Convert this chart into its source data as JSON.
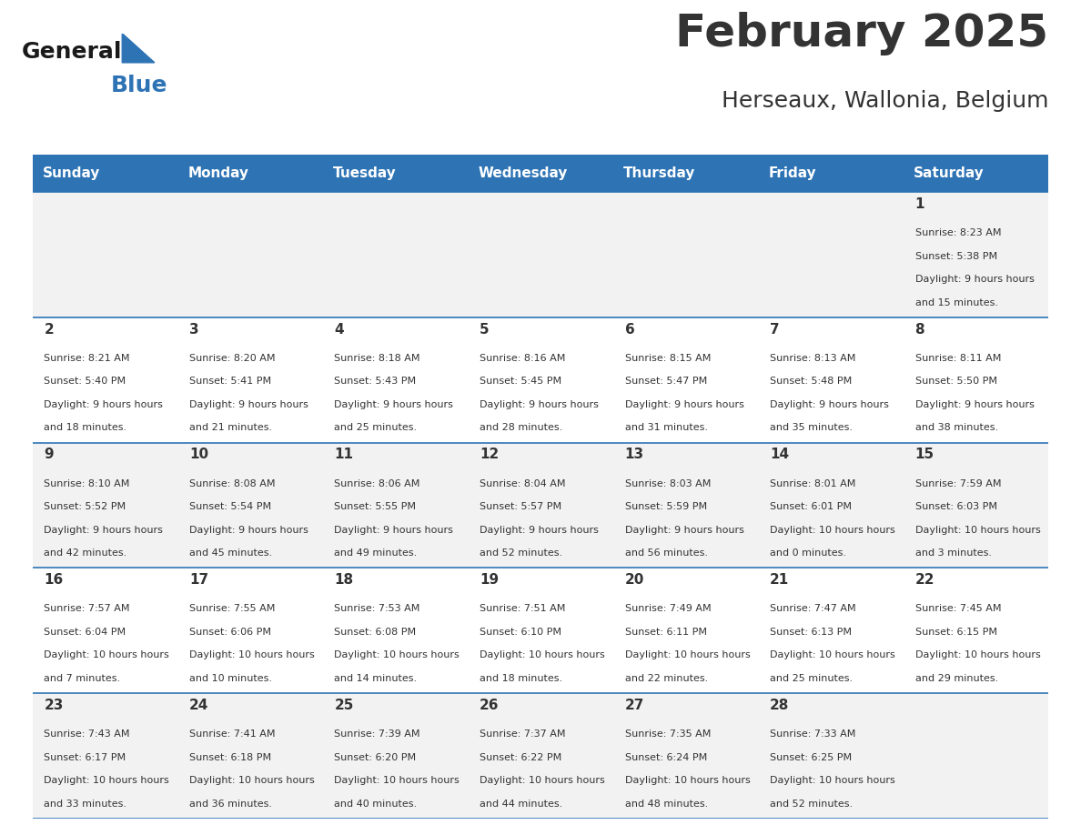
{
  "title": "February 2025",
  "subtitle": "Herseaux, Wallonia, Belgium",
  "header_bg": "#2E74B5",
  "header_text_color": "#FFFFFF",
  "day_names": [
    "Sunday",
    "Monday",
    "Tuesday",
    "Wednesday",
    "Thursday",
    "Friday",
    "Saturday"
  ],
  "odd_row_bg": "#F2F2F2",
  "even_row_bg": "#FFFFFF",
  "cell_text_color": "#333333",
  "date_color": "#333333",
  "title_color": "#333333",
  "subtitle_color": "#333333",
  "line_color": "#2E74B5",
  "calendar_data": [
    [
      null,
      null,
      null,
      null,
      null,
      null,
      {
        "day": 1,
        "sunrise": "8:23 AM",
        "sunset": "5:38 PM",
        "daylight": "9 hours and 15 minutes."
      }
    ],
    [
      {
        "day": 2,
        "sunrise": "8:21 AM",
        "sunset": "5:40 PM",
        "daylight": "9 hours and 18 minutes."
      },
      {
        "day": 3,
        "sunrise": "8:20 AM",
        "sunset": "5:41 PM",
        "daylight": "9 hours and 21 minutes."
      },
      {
        "day": 4,
        "sunrise": "8:18 AM",
        "sunset": "5:43 PM",
        "daylight": "9 hours and 25 minutes."
      },
      {
        "day": 5,
        "sunrise": "8:16 AM",
        "sunset": "5:45 PM",
        "daylight": "9 hours and 28 minutes."
      },
      {
        "day": 6,
        "sunrise": "8:15 AM",
        "sunset": "5:47 PM",
        "daylight": "9 hours and 31 minutes."
      },
      {
        "day": 7,
        "sunrise": "8:13 AM",
        "sunset": "5:48 PM",
        "daylight": "9 hours and 35 minutes."
      },
      {
        "day": 8,
        "sunrise": "8:11 AM",
        "sunset": "5:50 PM",
        "daylight": "9 hours and 38 minutes."
      }
    ],
    [
      {
        "day": 9,
        "sunrise": "8:10 AM",
        "sunset": "5:52 PM",
        "daylight": "9 hours and 42 minutes."
      },
      {
        "day": 10,
        "sunrise": "8:08 AM",
        "sunset": "5:54 PM",
        "daylight": "9 hours and 45 minutes."
      },
      {
        "day": 11,
        "sunrise": "8:06 AM",
        "sunset": "5:55 PM",
        "daylight": "9 hours and 49 minutes."
      },
      {
        "day": 12,
        "sunrise": "8:04 AM",
        "sunset": "5:57 PM",
        "daylight": "9 hours and 52 minutes."
      },
      {
        "day": 13,
        "sunrise": "8:03 AM",
        "sunset": "5:59 PM",
        "daylight": "9 hours and 56 minutes."
      },
      {
        "day": 14,
        "sunrise": "8:01 AM",
        "sunset": "6:01 PM",
        "daylight": "10 hours and 0 minutes."
      },
      {
        "day": 15,
        "sunrise": "7:59 AM",
        "sunset": "6:03 PM",
        "daylight": "10 hours and 3 minutes."
      }
    ],
    [
      {
        "day": 16,
        "sunrise": "7:57 AM",
        "sunset": "6:04 PM",
        "daylight": "10 hours and 7 minutes."
      },
      {
        "day": 17,
        "sunrise": "7:55 AM",
        "sunset": "6:06 PM",
        "daylight": "10 hours and 10 minutes."
      },
      {
        "day": 18,
        "sunrise": "7:53 AM",
        "sunset": "6:08 PM",
        "daylight": "10 hours and 14 minutes."
      },
      {
        "day": 19,
        "sunrise": "7:51 AM",
        "sunset": "6:10 PM",
        "daylight": "10 hours and 18 minutes."
      },
      {
        "day": 20,
        "sunrise": "7:49 AM",
        "sunset": "6:11 PM",
        "daylight": "10 hours and 22 minutes."
      },
      {
        "day": 21,
        "sunrise": "7:47 AM",
        "sunset": "6:13 PM",
        "daylight": "10 hours and 25 minutes."
      },
      {
        "day": 22,
        "sunrise": "7:45 AM",
        "sunset": "6:15 PM",
        "daylight": "10 hours and 29 minutes."
      }
    ],
    [
      {
        "day": 23,
        "sunrise": "7:43 AM",
        "sunset": "6:17 PM",
        "daylight": "10 hours and 33 minutes."
      },
      {
        "day": 24,
        "sunrise": "7:41 AM",
        "sunset": "6:18 PM",
        "daylight": "10 hours and 36 minutes."
      },
      {
        "day": 25,
        "sunrise": "7:39 AM",
        "sunset": "6:20 PM",
        "daylight": "10 hours and 40 minutes."
      },
      {
        "day": 26,
        "sunrise": "7:37 AM",
        "sunset": "6:22 PM",
        "daylight": "10 hours and 44 minutes."
      },
      {
        "day": 27,
        "sunrise": "7:35 AM",
        "sunset": "6:24 PM",
        "daylight": "10 hours and 48 minutes."
      },
      {
        "day": 28,
        "sunrise": "7:33 AM",
        "sunset": "6:25 PM",
        "daylight": "10 hours and 52 minutes."
      },
      null
    ]
  ]
}
